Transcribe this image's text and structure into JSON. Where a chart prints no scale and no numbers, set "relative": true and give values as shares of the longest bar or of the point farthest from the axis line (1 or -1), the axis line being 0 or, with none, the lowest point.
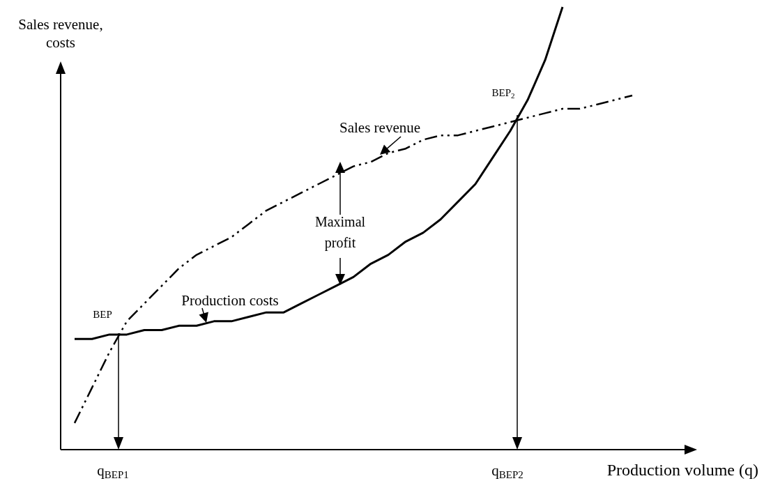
{
  "chart_data": {
    "type": "line",
    "relative": true,
    "ylabel": "Sales revenue, costs",
    "xlabel": "Production volume (q)",
    "categories": [
      null,
      null,
      null,
      null,
      null,
      null,
      null,
      null,
      null,
      null,
      null,
      null,
      null,
      null,
      null,
      null,
      null,
      null,
      null,
      null,
      null,
      null,
      null,
      null,
      null,
      null,
      null,
      null,
      null,
      null,
      null,
      null,
      null
    ],
    "series": [
      {
        "name": "Sales revenue",
        "color": "#000000",
        "line_style": "dashed",
        "values": [
          0.06,
          0.14,
          0.22,
          0.29,
          0.33,
          0.37,
          0.41,
          0.44,
          0.46,
          0.48,
          0.51,
          0.54,
          0.56,
          0.58,
          0.6,
          0.62,
          0.64,
          0.65,
          0.67,
          0.68,
          0.7,
          0.71,
          0.71,
          0.72,
          0.73,
          0.74,
          0.75,
          0.76,
          0.77,
          0.77,
          0.78,
          0.79,
          0.8
        ]
      },
      {
        "name": "Production costs",
        "color": "#000000",
        "line_style": "solid",
        "values": [
          0.25,
          0.25,
          0.26,
          0.26,
          0.27,
          0.27,
          0.28,
          0.28,
          0.29,
          0.29,
          0.3,
          0.31,
          0.31,
          0.33,
          0.35,
          0.37,
          0.39,
          0.42,
          0.44,
          0.47,
          0.49,
          0.52,
          0.56,
          0.6,
          0.66,
          0.72,
          0.79,
          0.88,
          1.0,
          null,
          null,
          null,
          null
        ]
      }
    ],
    "annotations": [
      "BEP",
      "BEP$_{2}$",
      "Maximal profit",
      "q$_{BEP1}$",
      "q$_{BEP2}$"
    ]
  }
}
